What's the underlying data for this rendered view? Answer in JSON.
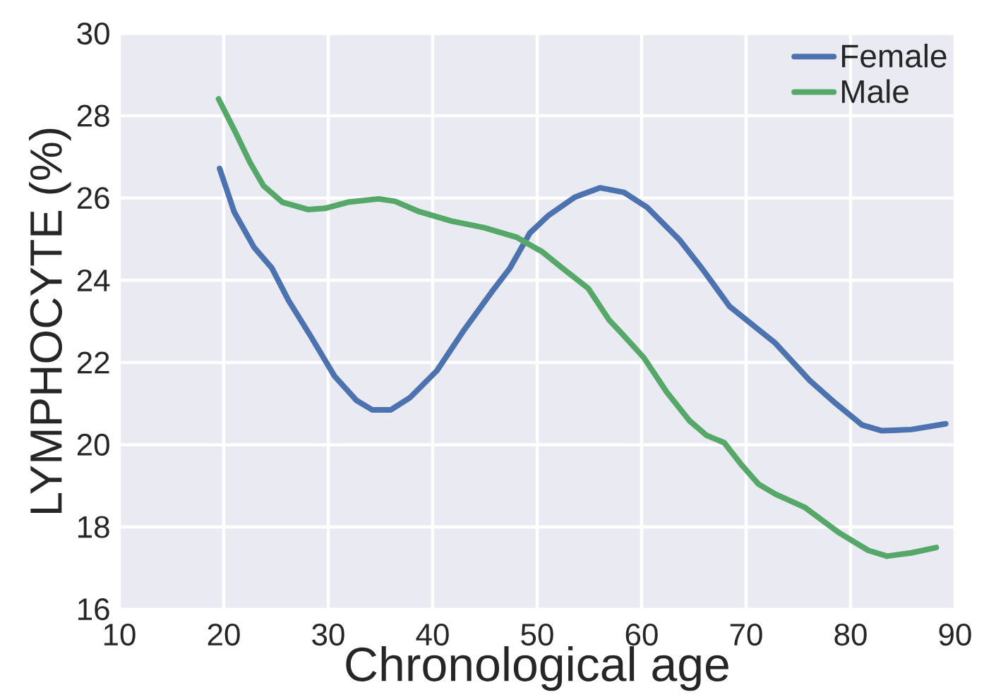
{
  "chart_data": {
    "type": "line",
    "xlabel": "Chronological age",
    "ylabel": "LYMPHOCYTE (%)",
    "xlim": [
      10,
      90
    ],
    "ylim": [
      16,
      30
    ],
    "xticks": [
      10,
      20,
      30,
      40,
      50,
      60,
      70,
      80,
      90
    ],
    "yticks": [
      16,
      18,
      20,
      22,
      24,
      26,
      28,
      30
    ],
    "grid": true,
    "legend": "top right",
    "line_style": "solid",
    "series": [
      {
        "name": "Female",
        "color": "#4c72b0",
        "x": [
          19.6,
          21.0,
          22.9,
          24.6,
          26.2,
          28.3,
          30.6,
          32.7,
          34.2,
          36.0,
          37.8,
          40.4,
          43.0,
          45.6,
          47.4,
          49.3,
          51.1,
          53.6,
          56.0,
          58.3,
          60.5,
          63.6,
          65.8,
          68.4,
          70.4,
          72.8,
          76.1,
          78.6,
          81.1,
          83.0,
          85.8,
          89.1
        ],
        "values": [
          26.72,
          25.66,
          24.8,
          24.3,
          23.51,
          22.65,
          21.67,
          21.08,
          20.85,
          20.85,
          21.14,
          21.8,
          22.79,
          23.7,
          24.3,
          25.15,
          25.58,
          26.02,
          26.25,
          26.14,
          25.78,
          24.99,
          24.28,
          23.37,
          22.96,
          22.47,
          21.56,
          21.0,
          20.48,
          20.34,
          20.37,
          20.51
        ]
      },
      {
        "name": "Male",
        "color": "#55a868",
        "x": [
          19.5,
          21.1,
          22.5,
          23.8,
          25.6,
          28.1,
          29.7,
          31.9,
          34.8,
          36.4,
          38.7,
          41.8,
          44.9,
          48.0,
          50.5,
          52.4,
          54.9,
          56.9,
          58.2,
          60.2,
          62.4,
          64.6,
          66.2,
          67.9,
          69.5,
          71.2,
          72.8,
          75.6,
          78.9,
          81.7,
          83.5,
          85.8,
          88.2
        ],
        "values": [
          28.41,
          27.61,
          26.87,
          26.3,
          25.9,
          25.72,
          25.75,
          25.9,
          25.98,
          25.92,
          25.67,
          25.44,
          25.28,
          25.05,
          24.69,
          24.3,
          23.8,
          23.03,
          22.68,
          22.12,
          21.28,
          20.58,
          20.23,
          20.05,
          19.53,
          19.04,
          18.8,
          18.48,
          17.86,
          17.43,
          17.29,
          17.37,
          17.5
        ]
      }
    ]
  }
}
